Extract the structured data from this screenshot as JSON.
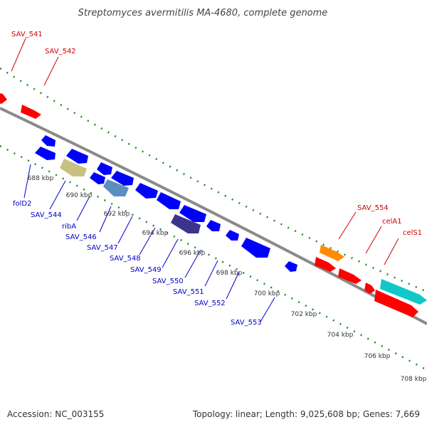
{
  "title": "Streptomyces avermitilis MA-4680, complete genome",
  "footer": {
    "accession": "Accession: NC_003155",
    "topology": "Topology: linear; Length: 9,025,608 bp; Genes: 7,669"
  },
  "colors": {
    "backbone": "#7a7a7a",
    "tick": "#1f8a1f",
    "forward_label": "#d40000",
    "reverse_label": "#0000c8",
    "gene_red": "#ff0000",
    "gene_blue": "#0000ff",
    "gene_orange": "#ff8c00",
    "gene_cyan": "#10c8c8",
    "gene_khaki": "#c8c080",
    "gene_steel": "#5a8fc0",
    "gene_indigo": "#3c348c"
  },
  "scale_labels": [
    "688 kbp",
    "690 kbp",
    "692 kbp",
    "694 kbp",
    "696 kbp",
    "698 kbp",
    "700 kbp",
    "702 kbp",
    "704 kbp",
    "706 kbp",
    "708 kbp"
  ],
  "forward_labels": [
    "SAV_541",
    "SAV_542",
    "SAV_554",
    "celA1",
    "celS1"
  ],
  "reverse_labels": [
    "folD2",
    "SAV_544",
    "ribA",
    "SAV_546",
    "SAV_547",
    "SAV_548",
    "SAV_549",
    "SAV_550",
    "SAV_551",
    "SAV_552",
    "SAV_553"
  ]
}
